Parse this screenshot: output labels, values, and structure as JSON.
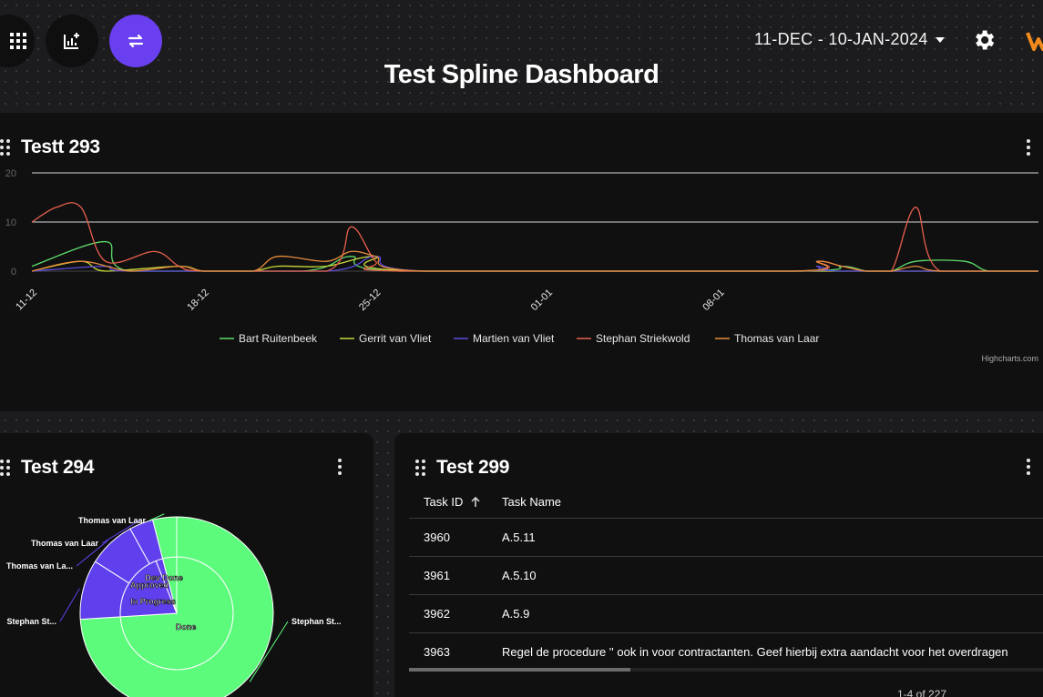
{
  "header": {
    "date_range": "11-DEC - 10-JAN-2024",
    "title": "Test Spline Dashboard"
  },
  "icons": {
    "grid": "apps-grid-icon",
    "add_chart": "add-chart-icon",
    "swap": "swap-arrows-icon",
    "settings": "gear-icon",
    "logo": "brand-logo"
  },
  "colors": {
    "accent": "#6a3ff0",
    "panel_bg": "#101011",
    "page_bg": "#1c1c1e"
  },
  "widgets": {
    "spline": {
      "title": "Testt 293",
      "credits": "Highcharts.com"
    },
    "pie": {
      "title": "Test 294"
    },
    "table": {
      "title": "Test 299",
      "columns": [
        "Task ID",
        "Task Name"
      ],
      "rows": [
        {
          "id": "3960",
          "name": "A.5.11"
        },
        {
          "id": "3961",
          "name": "A.5.10"
        },
        {
          "id": "3962",
          "name": "A.5.9"
        },
        {
          "id": "3963",
          "name": "Regel de procedure '' ook in voor contractanten. Geef hierbij extra aandacht voor het overdragen"
        }
      ],
      "pagination": "1-4 of 227"
    }
  },
  "chart_data": [
    {
      "type": "line",
      "title": "Testt 293",
      "x": [
        "11-12",
        "18-12",
        "25-12",
        "01-01",
        "08-01"
      ],
      "ylim": [
        0,
        20
      ],
      "yticks": [
        0,
        10,
        20
      ],
      "grid": true,
      "legend_position": "bottom",
      "series": [
        {
          "name": "Bart Ruitenbeek",
          "color": "#5fdc6a",
          "points": [
            [
              0,
              1
            ],
            [
              3,
              6
            ],
            [
              4,
              0
            ],
            [
              11,
              0
            ],
            [
              13,
              3
            ],
            [
              15,
              0
            ],
            [
              31,
              0
            ],
            [
              33,
              1
            ],
            [
              34,
              0
            ],
            [
              35,
              0
            ],
            [
              36,
              2
            ],
            [
              38,
              2
            ],
            [
              39,
              0
            ],
            [
              41,
              0
            ]
          ]
        },
        {
          "name": "Gerrit van Vliet",
          "color": "#c8d83a",
          "points": [
            [
              0,
              0
            ],
            [
              2,
              2
            ],
            [
              3,
              0
            ],
            [
              6,
              1
            ],
            [
              7,
              0
            ],
            [
              9,
              0
            ],
            [
              10,
              1
            ],
            [
              12,
              1
            ],
            [
              14,
              3
            ],
            [
              16,
              0
            ],
            [
              41,
              0
            ]
          ]
        },
        {
          "name": "Martien van Vliet",
          "color": "#5a4de0",
          "points": [
            [
              0,
              0
            ],
            [
              3,
              1
            ],
            [
              4,
              0
            ],
            [
              12,
              0
            ],
            [
              14,
              3
            ],
            [
              16,
              0
            ],
            [
              31,
              0
            ],
            [
              32,
              1
            ],
            [
              33,
              0
            ],
            [
              41,
              0
            ]
          ]
        },
        {
          "name": "Stephan Striekwold",
          "color": "#e8604c",
          "points": [
            [
              0,
              10
            ],
            [
              1,
              13
            ],
            [
              2,
              13
            ],
            [
              3,
              2
            ],
            [
              5,
              4
            ],
            [
              6,
              1
            ],
            [
              7,
              0
            ],
            [
              12,
              0
            ],
            [
              13,
              9
            ],
            [
              14,
              2
            ],
            [
              15,
              0
            ],
            [
              31,
              0
            ],
            [
              32,
              2
            ],
            [
              33,
              1
            ],
            [
              34,
              0
            ],
            [
              35,
              0
            ],
            [
              36,
              13
            ],
            [
              37,
              0
            ],
            [
              41,
              0
            ]
          ]
        },
        {
          "name": "Thomas van Laar",
          "color": "#e58a3c",
          "points": [
            [
              0,
              0
            ],
            [
              2,
              2
            ],
            [
              4,
              0
            ],
            [
              6,
              1
            ],
            [
              7,
              0
            ],
            [
              9,
              0
            ],
            [
              10,
              3
            ],
            [
              12,
              2
            ],
            [
              13,
              4
            ],
            [
              14,
              3
            ],
            [
              16,
              0
            ],
            [
              31,
              0
            ],
            [
              32,
              2
            ],
            [
              33,
              1
            ],
            [
              34,
              0
            ],
            [
              35,
              0
            ],
            [
              36,
              1
            ],
            [
              37,
              0
            ],
            [
              41,
              0
            ]
          ]
        }
      ]
    },
    {
      "type": "pie",
      "title": "Test 294",
      "inner": [
        {
          "name": "Done",
          "value": 74,
          "color": "#5cfb7c"
        },
        {
          "name": "In Progress",
          "value": 20,
          "color": "#6040ec"
        },
        {
          "name": "Approved",
          "value": 2,
          "color": "#6040ec"
        },
        {
          "name": "Dev Done",
          "value": 4,
          "color": "#5cfb7c"
        }
      ],
      "outer": [
        {
          "name": "Stephan St...",
          "value": 74,
          "color": "#5cfb7c"
        },
        {
          "name": "Stephan St...",
          "value": 10,
          "color": "#6040ec"
        },
        {
          "name": "Thomas van La...",
          "value": 8,
          "color": "#6040ec"
        },
        {
          "name": "Thomas van Laar",
          "value": 4,
          "color": "#6040ec"
        },
        {
          "name": "Thomas van Laar",
          "value": 4,
          "color": "#5cfb7c"
        }
      ]
    }
  ]
}
